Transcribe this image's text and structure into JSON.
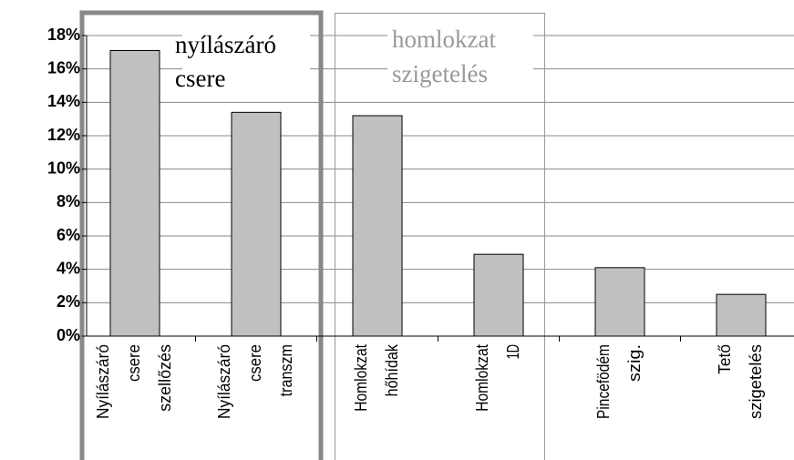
{
  "chart_data": {
    "type": "bar",
    "categories": [
      "Nyílászáró csere szellőzés",
      "Nyílászáró csere transzm",
      "Homlokzat hőhídak",
      "Homlokzat 1D",
      "Pincefödém szig.",
      "Tető szigetelés"
    ],
    "values": [
      17.1,
      13.4,
      13.2,
      4.9,
      4.1,
      2.5
    ],
    "color": "#c0c0c0",
    "ylim": [
      0,
      18
    ],
    "yticks": [
      {
        "value": 0,
        "label": "0%"
      },
      {
        "value": 2,
        "label": "2%"
      },
      {
        "value": 4,
        "label": "4%"
      },
      {
        "value": 6,
        "label": "6%"
      },
      {
        "value": 8,
        "label": "8%"
      },
      {
        "value": 10,
        "label": "10%"
      },
      {
        "value": 12,
        "label": "12%"
      },
      {
        "value": 14,
        "label": "14%"
      },
      {
        "value": 16,
        "label": "16%"
      },
      {
        "value": 18,
        "label": "18%"
      }
    ],
    "grid": true,
    "annotations": [
      {
        "lines": [
          "nyílászáró",
          "csere"
        ]
      },
      {
        "lines": [
          "homlokzat",
          "szigetelés"
        ]
      }
    ]
  }
}
